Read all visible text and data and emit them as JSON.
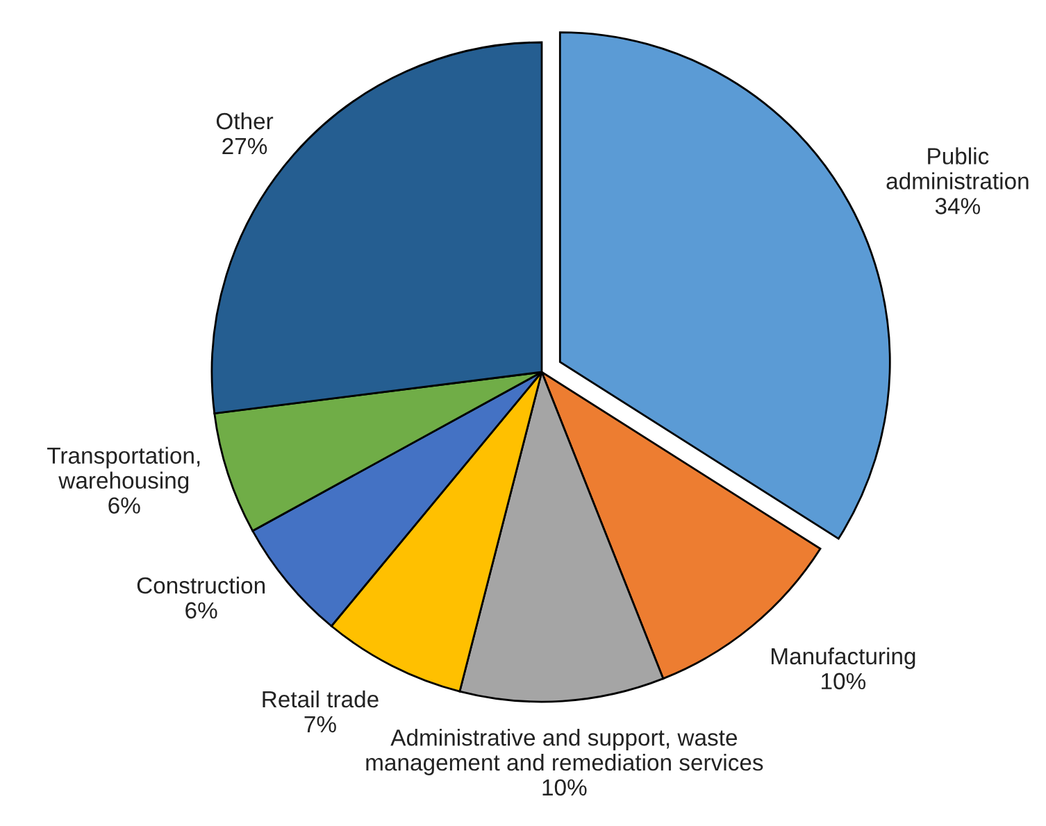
{
  "chart_data": {
    "type": "pie",
    "categories": [
      "Public\nadministration",
      "Manufacturing",
      "Administrative and support, waste\nmanagement and remediation services",
      "Retail trade",
      "Construction",
      "Transportation,\nwarehousing",
      "Other"
    ],
    "values": [
      34,
      10,
      10,
      7,
      6,
      6,
      27
    ],
    "colors": [
      "#5b9bd5",
      "#ed7d31",
      "#a5a5a5",
      "#ffc000",
      "#4472c4",
      "#70ad47",
      "#255e91"
    ],
    "value_labels": [
      "34%",
      "10%",
      "10%",
      "7%",
      "6%",
      "6%",
      "27%"
    ]
  }
}
